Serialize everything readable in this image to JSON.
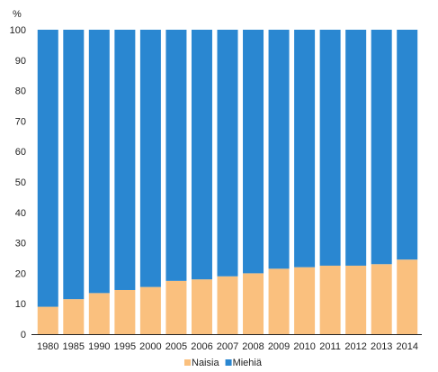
{
  "chart_data": {
    "type": "bar",
    "stacked": true,
    "unit_label": "%",
    "categories": [
      "1980",
      "1985",
      "1990",
      "1995",
      "2000",
      "2005",
      "2006",
      "2007",
      "2008",
      "2009",
      "2010",
      "2011",
      "2012",
      "2013",
      "2014"
    ],
    "series": [
      {
        "name": "Naisia",
        "color": "#FAC07E",
        "values": [
          9,
          11.5,
          13.5,
          14.5,
          15.5,
          17.5,
          18,
          19,
          20,
          21.5,
          22,
          22.5,
          22.5,
          23,
          24.5
        ]
      },
      {
        "name": "Miehiä",
        "color": "#2A87D1",
        "values": [
          91,
          88.5,
          86.5,
          85.5,
          84.5,
          82.5,
          82,
          81,
          80,
          78.5,
          78,
          77.5,
          77.5,
          77,
          75.5
        ]
      }
    ],
    "ylim": [
      0,
      100
    ],
    "yticks": [
      "0",
      "10",
      "20",
      "30",
      "40",
      "50",
      "60",
      "70",
      "80",
      "90",
      "100"
    ],
    "grid": false,
    "legend_position": "bottom"
  }
}
